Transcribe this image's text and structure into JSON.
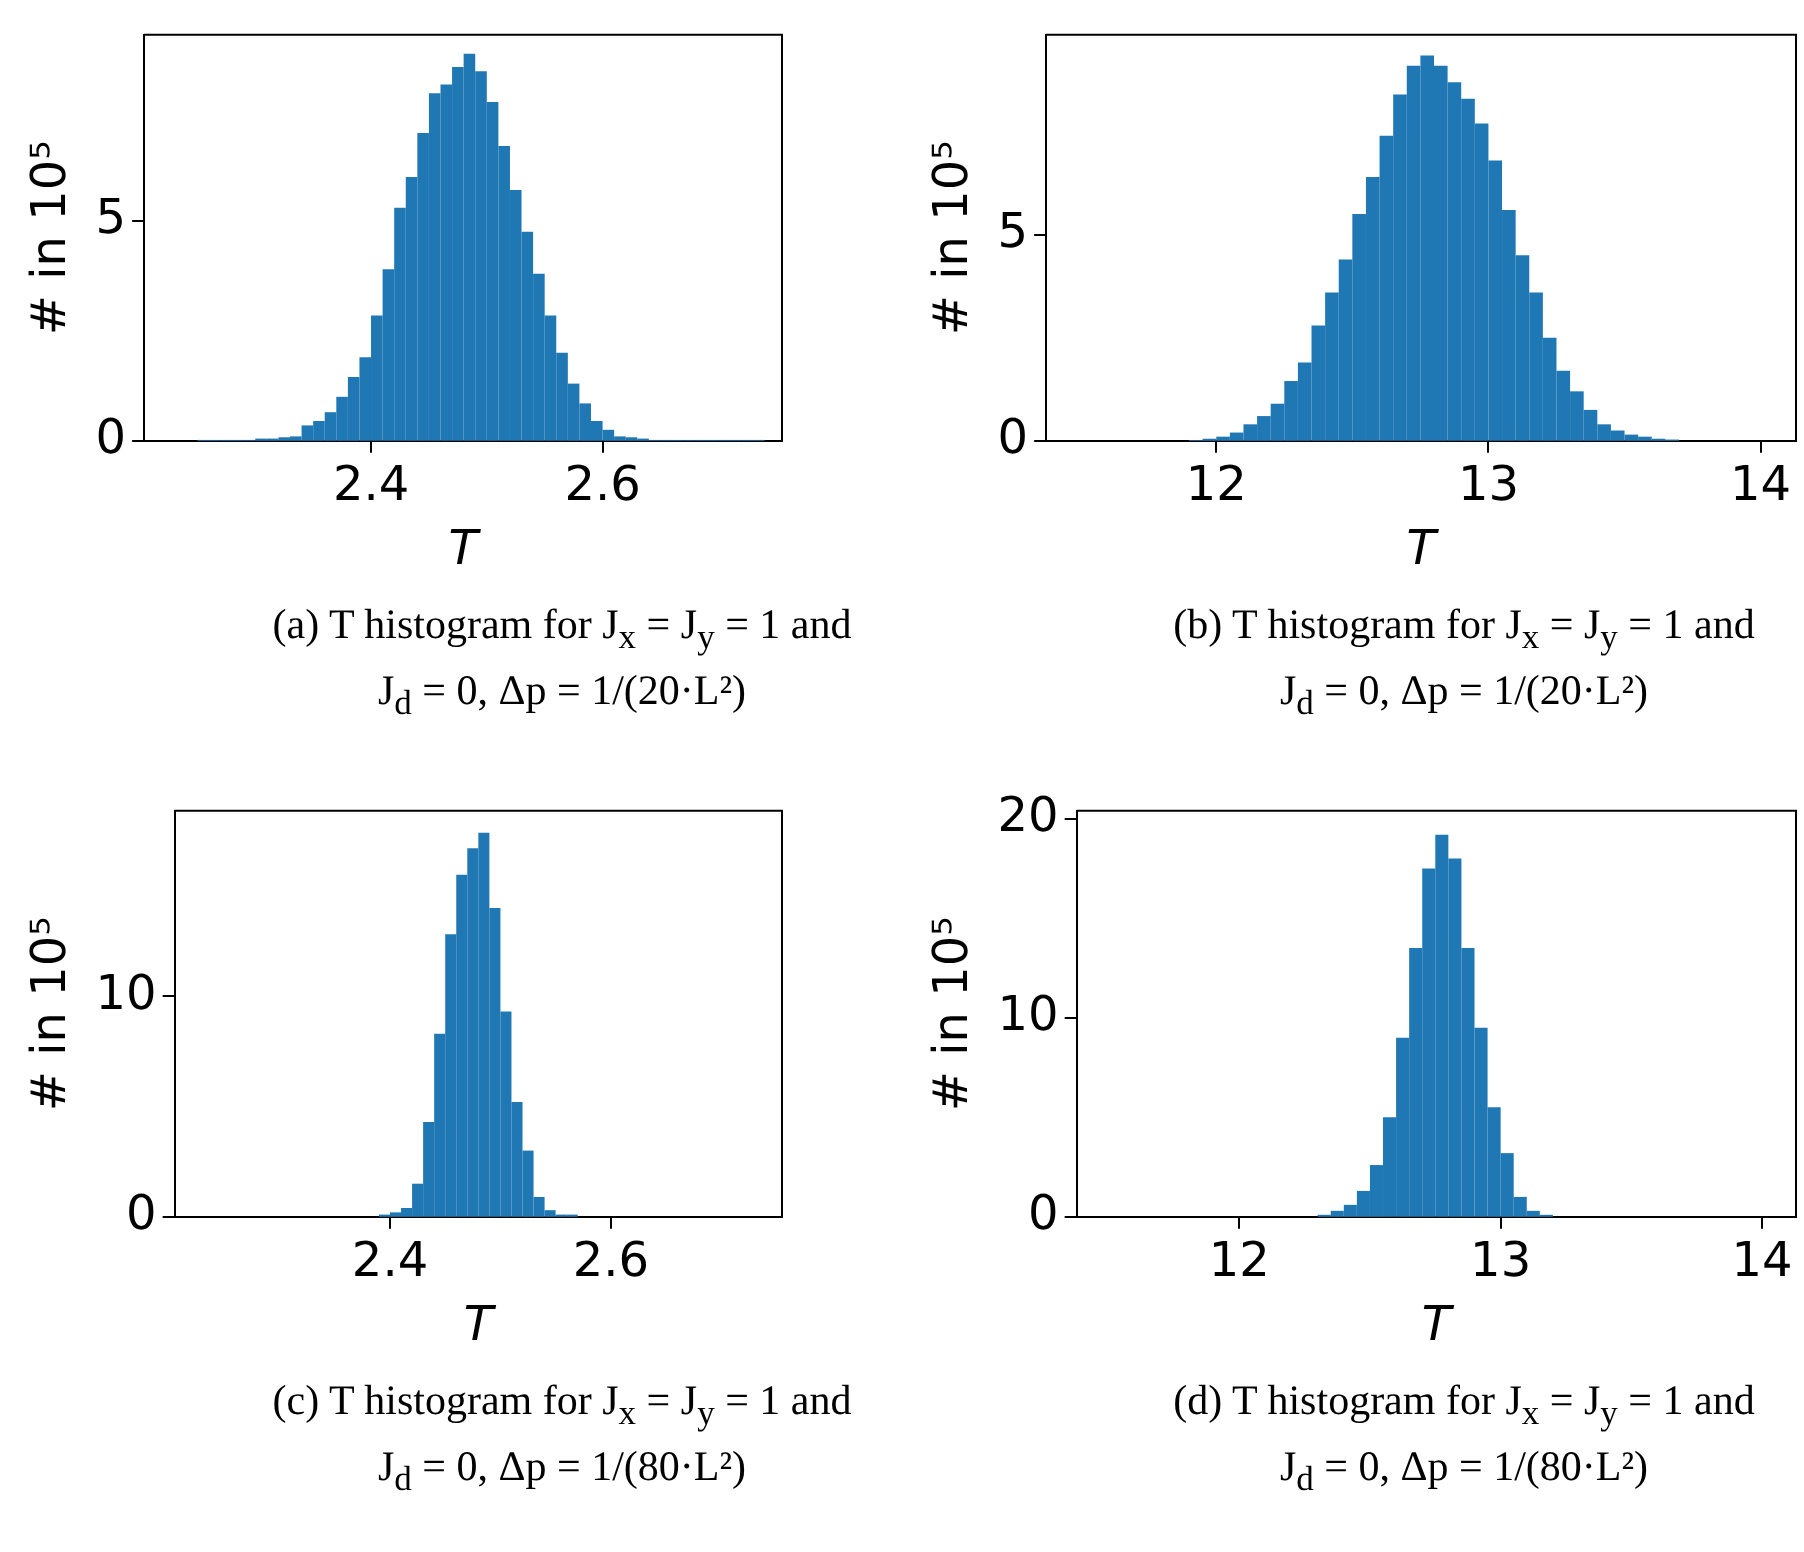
{
  "chart_data": [
    {
      "type": "histogram",
      "xlabel": "T",
      "ylabel": "# in 10⁵",
      "color": "#1f77b4",
      "xlim": [
        2.204,
        2.755
      ],
      "ylim": [
        0,
        9.23
      ],
      "xticks": [
        2.4,
        2.6
      ],
      "yticks": [
        0,
        5
      ],
      "bins": [
        2.25,
        2.26,
        2.27,
        2.28,
        2.29,
        2.3,
        2.31,
        2.32,
        2.33,
        2.34,
        2.35,
        2.36,
        2.37,
        2.38,
        2.39,
        2.4,
        2.41,
        2.42,
        2.43,
        2.44,
        2.45,
        2.46,
        2.47,
        2.48,
        2.49,
        2.5,
        2.51,
        2.52,
        2.53,
        2.54,
        2.55,
        2.56,
        2.57,
        2.58,
        2.59,
        2.6,
        2.61,
        2.62,
        2.63,
        2.64,
        2.65,
        2.66,
        2.67,
        2.68,
        2.69,
        2.7,
        2.71,
        2.72,
        2.73,
        2.74
      ],
      "values": [
        0.02,
        0.02,
        0.02,
        0.02,
        0.02,
        0.05,
        0.05,
        0.08,
        0.1,
        0.35,
        0.45,
        0.65,
        1.0,
        1.45,
        1.9,
        2.85,
        3.9,
        5.3,
        6.0,
        7.0,
        7.9,
        8.1,
        8.5,
        8.8,
        8.4,
        7.7,
        6.7,
        5.7,
        4.75,
        3.8,
        2.85,
        2.0,
        1.3,
        0.85,
        0.45,
        0.25,
        0.1,
        0.08,
        0.05,
        0.02,
        0.02,
        0.02,
        0.02,
        0.02,
        0.02,
        0.02,
        0.02,
        0.02,
        0.02
      ],
      "annotations": [
        "(a) T histogram for J$_{x}$ = J$_{y}$ = 1 and J$_{d}$ = 0, Δp = 1/(20·L²)"
      ]
    },
    {
      "type": "histogram",
      "xlabel": "T",
      "ylabel": "# in 10⁵",
      "color": "#1f77b4",
      "xlim": [
        11.375,
        14.13
      ],
      "ylim": [
        0,
        9.85
      ],
      "xticks": [
        12,
        13,
        14
      ],
      "yticks": [
        0,
        5
      ],
      "bins": [
        11.9,
        11.95,
        12.0,
        12.05,
        12.1,
        12.15,
        12.2,
        12.25,
        12.3,
        12.35,
        12.4,
        12.45,
        12.5,
        12.55,
        12.6,
        12.65,
        12.7,
        12.75,
        12.8,
        12.85,
        12.9,
        12.95,
        13.0,
        13.05,
        13.1,
        13.15,
        13.2,
        13.25,
        13.3,
        13.35,
        13.4,
        13.45,
        13.5,
        13.55,
        13.6,
        13.65,
        13.7
      ],
      "values": [
        0.02,
        0.05,
        0.1,
        0.2,
        0.4,
        0.6,
        0.9,
        1.45,
        1.9,
        2.8,
        3.6,
        4.4,
        5.5,
        6.4,
        7.4,
        8.4,
        9.1,
        9.35,
        9.1,
        8.7,
        8.3,
        7.7,
        6.8,
        5.6,
        4.5,
        3.6,
        2.5,
        1.7,
        1.2,
        0.75,
        0.4,
        0.25,
        0.15,
        0.1,
        0.05,
        0.03
      ],
      "annotations": [
        "(b) T histogram for J$_{x}$ = J$_{y}$ = 1 and J$_{d}$ = 0, Δp = 1/(20·L²)"
      ]
    },
    {
      "type": "histogram",
      "xlabel": "T",
      "ylabel": "# in 10⁵",
      "color": "#1f77b4",
      "xlim": [
        2.205,
        2.755
      ],
      "ylim": [
        0,
        18.4
      ],
      "xticks": [
        2.4,
        2.6
      ],
      "yticks": [
        0,
        10
      ],
      "bins": [
        2.39,
        2.4,
        2.41,
        2.42,
        2.43,
        2.44,
        2.45,
        2.46,
        2.47,
        2.48,
        2.49,
        2.5,
        2.51,
        2.52,
        2.53,
        2.54,
        2.55,
        2.56,
        2.57
      ],
      "values": [
        0.1,
        0.2,
        0.4,
        1.5,
        4.3,
        8.3,
        12.8,
        15.5,
        16.7,
        17.4,
        14.0,
        9.3,
        5.2,
        3.0,
        0.9,
        0.3,
        0.1,
        0.1
      ],
      "annotations": [
        "(c) T histogram for J$_{x}$ = J$_{y}$ = 1 and J$_{d}$ = 0, Δp = 1/(80·L²)"
      ]
    },
    {
      "type": "histogram",
      "xlabel": "T",
      "ylabel": "# in 10⁵",
      "color": "#1f77b4",
      "xlim": [
        11.378,
        14.13
      ],
      "ylim": [
        0,
        20.4
      ],
      "xticks": [
        12,
        13,
        14
      ],
      "yticks": [
        0,
        10,
        20
      ],
      "bins": [
        12.3,
        12.35,
        12.4,
        12.45,
        12.5,
        12.55,
        12.6,
        12.65,
        12.7,
        12.75,
        12.8,
        12.85,
        12.9,
        12.95,
        13.0,
        13.05,
        13.1,
        13.15,
        13.2
      ],
      "values": [
        0.1,
        0.3,
        0.6,
        1.3,
        2.6,
        5.0,
        9.0,
        13.5,
        17.5,
        19.2,
        18.0,
        13.5,
        9.5,
        5.5,
        3.2,
        1.0,
        0.3,
        0.1
      ],
      "annotations": [
        "(d) T histogram for J$_{x}$ = J$_{y}$ = 1 and J$_{d}$ = 0, Δp = 1/(80·L²)"
      ]
    }
  ]
}
